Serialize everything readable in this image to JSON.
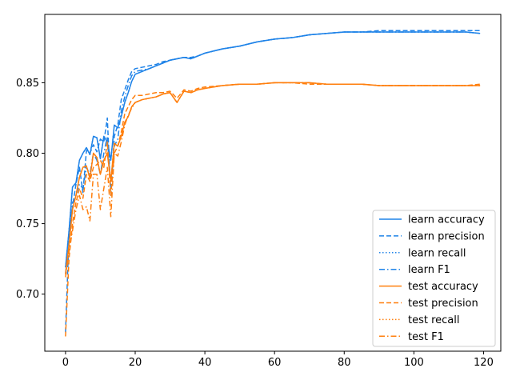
{
  "chart_data": {
    "type": "line",
    "title": "",
    "xlabel": "",
    "ylabel": "",
    "xlim": [
      -5.95,
      124.95
    ],
    "ylim": [
      0.6595,
      0.8985
    ],
    "xticks": [
      0,
      20,
      40,
      60,
      80,
      100,
      120
    ],
    "xtick_labels": [
      "0",
      "20",
      "40",
      "60",
      "80",
      "100",
      "120"
    ],
    "yticks": [
      0.7,
      0.75,
      0.8,
      0.85
    ],
    "ytick_labels": [
      "0.70",
      "0.75",
      "0.80",
      "0.85"
    ],
    "grid": false,
    "legend_position": "lower-right",
    "colors": {
      "learn": "#1f83e8",
      "test": "#ff7f0e"
    },
    "x_anchors": [
      0,
      1,
      2,
      3,
      4,
      5,
      6,
      7,
      8,
      9,
      10,
      11,
      12,
      13,
      14,
      15,
      16,
      17,
      18,
      19,
      20,
      22,
      24,
      26,
      28,
      30,
      32,
      34,
      36,
      38,
      40,
      45,
      50,
      55,
      60,
      65,
      70,
      75,
      80,
      85,
      90,
      95,
      100,
      105,
      110,
      115,
      119
    ],
    "series": [
      {
        "name": "learn accuracy",
        "group": "learn",
        "dash": "solid",
        "values": [
          0.719,
          0.745,
          0.776,
          0.779,
          0.795,
          0.8,
          0.804,
          0.799,
          0.812,
          0.811,
          0.796,
          0.812,
          0.808,
          0.795,
          0.82,
          0.818,
          0.826,
          0.836,
          0.843,
          0.851,
          0.856,
          0.858,
          0.86,
          0.862,
          0.864,
          0.866,
          0.867,
          0.868,
          0.867,
          0.869,
          0.871,
          0.874,
          0.876,
          0.879,
          0.881,
          0.882,
          0.884,
          0.885,
          0.886,
          0.886,
          0.886,
          0.886,
          0.886,
          0.886,
          0.886,
          0.886,
          0.885
        ]
      },
      {
        "name": "learn precision",
        "group": "learn",
        "dash": "dashed",
        "values": [
          0.673,
          0.742,
          0.762,
          0.778,
          0.79,
          0.772,
          0.802,
          0.8,
          0.806,
          0.801,
          0.81,
          0.808,
          0.825,
          0.77,
          0.812,
          0.82,
          0.838,
          0.845,
          0.852,
          0.858,
          0.86,
          0.861,
          0.862,
          0.863,
          0.865,
          0.866,
          0.867,
          0.868,
          0.868,
          0.869,
          0.871,
          0.874,
          0.876,
          0.879,
          0.881,
          0.882,
          0.884,
          0.885,
          0.886,
          0.886,
          0.887,
          0.887,
          0.887,
          0.887,
          0.887,
          0.887,
          0.887
        ]
      },
      {
        "name": "learn recall",
        "group": "learn",
        "dash": "dotted",
        "values": [
          0.719,
          0.745,
          0.776,
          0.779,
          0.795,
          0.8,
          0.804,
          0.799,
          0.812,
          0.811,
          0.796,
          0.812,
          0.808,
          0.795,
          0.82,
          0.818,
          0.826,
          0.836,
          0.843,
          0.851,
          0.856,
          0.858,
          0.86,
          0.862,
          0.864,
          0.866,
          0.867,
          0.868,
          0.867,
          0.869,
          0.871,
          0.874,
          0.876,
          0.879,
          0.881,
          0.882,
          0.884,
          0.885,
          0.886,
          0.886,
          0.886,
          0.886,
          0.886,
          0.886,
          0.886,
          0.886,
          0.885
        ]
      },
      {
        "name": "learn F1",
        "group": "learn",
        "dash": "dashdot",
        "values": [
          0.715,
          0.735,
          0.765,
          0.77,
          0.778,
          0.775,
          0.79,
          0.785,
          0.8,
          0.795,
          0.785,
          0.8,
          0.812,
          0.775,
          0.805,
          0.81,
          0.83,
          0.84,
          0.848,
          0.855,
          0.858,
          0.859,
          0.86,
          0.862,
          0.864,
          0.866,
          0.867,
          0.868,
          0.867,
          0.869,
          0.871,
          0.874,
          0.876,
          0.879,
          0.881,
          0.882,
          0.884,
          0.885,
          0.886,
          0.886,
          0.886,
          0.886,
          0.886,
          0.886,
          0.886,
          0.886,
          0.885
        ]
      },
      {
        "name": "test accuracy",
        "group": "test",
        "dash": "solid",
        "values": [
          0.714,
          0.735,
          0.76,
          0.77,
          0.783,
          0.79,
          0.791,
          0.782,
          0.8,
          0.797,
          0.785,
          0.795,
          0.8,
          0.78,
          0.807,
          0.805,
          0.812,
          0.822,
          0.826,
          0.833,
          0.836,
          0.838,
          0.839,
          0.84,
          0.842,
          0.843,
          0.836,
          0.844,
          0.843,
          0.845,
          0.846,
          0.848,
          0.849,
          0.849,
          0.85,
          0.85,
          0.85,
          0.849,
          0.849,
          0.849,
          0.848,
          0.848,
          0.848,
          0.848,
          0.848,
          0.848,
          0.848
        ]
      },
      {
        "name": "test precision",
        "group": "test",
        "dash": "dashed",
        "values": [
          0.67,
          0.725,
          0.75,
          0.765,
          0.775,
          0.768,
          0.785,
          0.78,
          0.79,
          0.792,
          0.795,
          0.79,
          0.808,
          0.77,
          0.8,
          0.805,
          0.815,
          0.828,
          0.833,
          0.838,
          0.841,
          0.841,
          0.842,
          0.843,
          0.843,
          0.844,
          0.839,
          0.845,
          0.844,
          0.846,
          0.847,
          0.848,
          0.849,
          0.849,
          0.85,
          0.85,
          0.849,
          0.849,
          0.849,
          0.849,
          0.848,
          0.848,
          0.848,
          0.848,
          0.848,
          0.848,
          0.849
        ]
      },
      {
        "name": "test recall",
        "group": "test",
        "dash": "dotted",
        "values": [
          0.714,
          0.735,
          0.76,
          0.77,
          0.783,
          0.79,
          0.791,
          0.782,
          0.8,
          0.797,
          0.785,
          0.795,
          0.8,
          0.78,
          0.807,
          0.805,
          0.812,
          0.822,
          0.826,
          0.833,
          0.836,
          0.838,
          0.839,
          0.84,
          0.842,
          0.843,
          0.836,
          0.844,
          0.843,
          0.845,
          0.846,
          0.848,
          0.849,
          0.849,
          0.85,
          0.85,
          0.85,
          0.849,
          0.849,
          0.849,
          0.848,
          0.848,
          0.848,
          0.848,
          0.848,
          0.848,
          0.848
        ]
      },
      {
        "name": "test F1",
        "group": "test",
        "dash": "dashdot",
        "values": [
          0.712,
          0.73,
          0.745,
          0.76,
          0.77,
          0.76,
          0.762,
          0.752,
          0.785,
          0.785,
          0.76,
          0.775,
          0.79,
          0.755,
          0.8,
          0.798,
          0.808,
          0.82,
          0.827,
          0.832,
          0.836,
          0.838,
          0.839,
          0.84,
          0.842,
          0.843,
          0.836,
          0.844,
          0.843,
          0.845,
          0.846,
          0.848,
          0.849,
          0.849,
          0.85,
          0.85,
          0.85,
          0.849,
          0.849,
          0.849,
          0.848,
          0.848,
          0.848,
          0.848,
          0.848,
          0.848,
          0.848
        ]
      }
    ]
  }
}
